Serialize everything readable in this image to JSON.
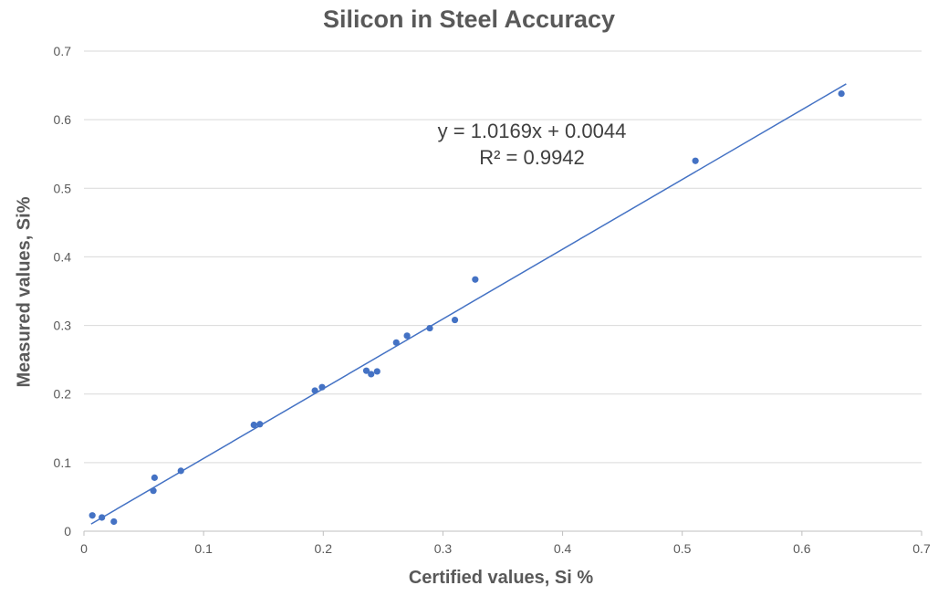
{
  "chart_data": {
    "type": "scatter",
    "title": "Silicon in Steel Accuracy",
    "xlabel": "Certified values, Si %",
    "ylabel": "Measured values, Si%",
    "xlim": [
      0,
      0.7
    ],
    "ylim": [
      0,
      0.7
    ],
    "xticks": [
      "0",
      "0.1",
      "0.2",
      "0.3",
      "0.4",
      "0.5",
      "0.6",
      "0.7"
    ],
    "yticks": [
      "0",
      "0.1",
      "0.2",
      "0.3",
      "0.4",
      "0.5",
      "0.6",
      "0.7"
    ],
    "grid": "horizontal",
    "point_color": "#4472c4",
    "trend_color": "#4472c4",
    "points": [
      {
        "x": 0.007,
        "y": 0.023
      },
      {
        "x": 0.015,
        "y": 0.02
      },
      {
        "x": 0.025,
        "y": 0.014
      },
      {
        "x": 0.058,
        "y": 0.059
      },
      {
        "x": 0.059,
        "y": 0.078
      },
      {
        "x": 0.081,
        "y": 0.088
      },
      {
        "x": 0.142,
        "y": 0.155
      },
      {
        "x": 0.147,
        "y": 0.156
      },
      {
        "x": 0.193,
        "y": 0.205
      },
      {
        "x": 0.199,
        "y": 0.21
      },
      {
        "x": 0.236,
        "y": 0.234
      },
      {
        "x": 0.24,
        "y": 0.229
      },
      {
        "x": 0.245,
        "y": 0.233
      },
      {
        "x": 0.261,
        "y": 0.275
      },
      {
        "x": 0.27,
        "y": 0.285
      },
      {
        "x": 0.289,
        "y": 0.296
      },
      {
        "x": 0.31,
        "y": 0.308
      },
      {
        "x": 0.327,
        "y": 0.367
      },
      {
        "x": 0.511,
        "y": 0.54
      },
      {
        "x": 0.633,
        "y": 0.638
      }
    ],
    "trendline": {
      "slope": 1.0169,
      "intercept": 0.0044,
      "x_range": [
        0.006,
        0.637
      ]
    },
    "equation": "y = 1.0169x + 0.0044",
    "r_squared": "R² = 0.9942"
  }
}
